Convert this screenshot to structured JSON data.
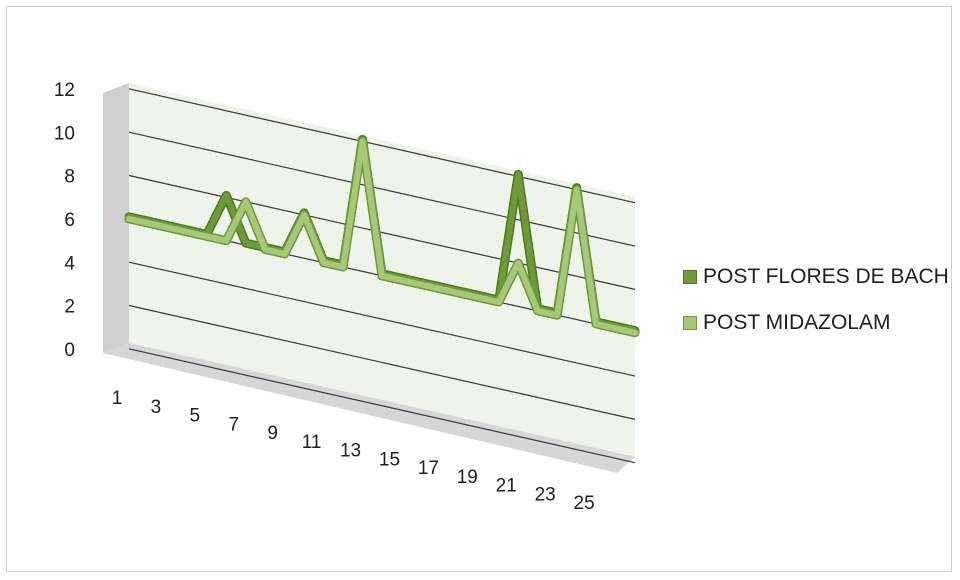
{
  "chart_data": {
    "type": "line",
    "style": "3d-line",
    "categories": [
      "1",
      "2",
      "3",
      "4",
      "5",
      "6",
      "7",
      "8",
      "9",
      "10",
      "11",
      "12",
      "13",
      "14",
      "15",
      "16",
      "17",
      "18",
      "19",
      "20",
      "21",
      "22",
      "23",
      "24",
      "25",
      "26",
      "27"
    ],
    "x_tick_labels": [
      "1",
      "3",
      "5",
      "7",
      "9",
      "11",
      "13",
      "15",
      "17",
      "19",
      "21",
      "23",
      "25"
    ],
    "y_tick_labels": [
      "0",
      "2",
      "4",
      "6",
      "8",
      "10",
      "12"
    ],
    "ylim": [
      0,
      12
    ],
    "y_step": 2,
    "grid": true,
    "legend_position": "right",
    "series": [
      {
        "name": "POST FLORES DE BACH",
        "color": "#6f9a3a",
        "values": [
          6,
          6,
          6,
          6,
          6,
          8,
          6,
          6,
          6,
          8,
          6,
          6,
          12,
          6,
          6,
          6,
          6,
          6,
          6,
          6,
          12,
          6,
          6,
          12,
          6,
          6,
          6
        ]
      },
      {
        "name": "POST MIDAZOLAM",
        "color": "#a6c878",
        "values": [
          6,
          6,
          6,
          6,
          6,
          6,
          8,
          6,
          6,
          8,
          6,
          6,
          12,
          6,
          6,
          6,
          6,
          6,
          6,
          6,
          8,
          6,
          6,
          12,
          6,
          6,
          6
        ]
      }
    ]
  }
}
